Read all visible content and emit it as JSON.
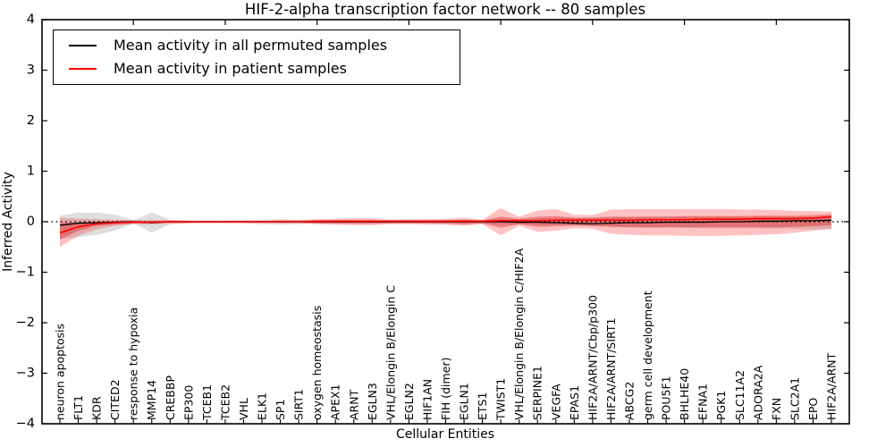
{
  "figure": {
    "title": "HIF-2-alpha transcription factor network -- 80 samples",
    "xlabel": "Cellular Entities",
    "ylabel": "Inferred Activity"
  },
  "legend": {
    "items": [
      {
        "label": "Mean activity in all permuted samples",
        "color": "#000000"
      },
      {
        "label": "Mean activity in patient samples",
        "color": "#ff0000"
      }
    ]
  },
  "chart_data": {
    "type": "line",
    "title": "HIF-2-alpha transcription factor network -- 80 samples",
    "xlabel": "Cellular Entities",
    "ylabel": "Inferred Activity",
    "ylim": [
      -4,
      4
    ],
    "grid": false,
    "legend_position": "upper left",
    "ytick_values": [
      4,
      3,
      2,
      1,
      0,
      -1,
      -2,
      -3,
      -4
    ],
    "ytick_labels": [
      "4",
      "3",
      "2",
      "1",
      "0",
      "−1",
      "−2",
      "−3",
      "−4"
    ],
    "top_tick_indices": [
      4,
      9,
      14,
      19,
      24,
      29,
      34,
      39
    ],
    "categories": [
      "neuron apoptosis",
      "FLT1",
      "KDR",
      "CITED2",
      "response to hypoxia",
      "MMP14",
      "CREBBP",
      "EP300",
      "TCEB1",
      "TCEB2",
      "VHL",
      "ELK1",
      "SP1",
      "SIRT1",
      "oxygen homeostasis",
      "APEX1",
      "ARNT",
      "EGLN3",
      "VHL/Elongin B/Elongin C",
      "EGLN2",
      "HIF1AN",
      "FIH (dimer)",
      "EGLN1",
      "ETS1",
      "TWIST1",
      "VHL/Elongin B/Elongin C/HIF2A",
      "SERPINE1",
      "VEGFA",
      "EPAS1",
      "HIF2A/ARNT/Cbp/p300",
      "HIF2A/ARNT/SIRT1",
      "ABCG2",
      "germ cell development",
      "POU5F1",
      "BHLHE40",
      "EFNA1",
      "PGK1",
      "SLC11A2",
      "ADORA2A",
      "FXN",
      "SLC2A1",
      "EPO",
      "HIF2A/ARNT"
    ],
    "zero_line": {
      "y": 0,
      "style": "dotted",
      "color": "#000000"
    },
    "series": [
      {
        "name": "Mean activity in all permuted samples",
        "color": "#000000",
        "values": [
          -0.07,
          -0.03,
          -0.02,
          -0.01,
          0,
          -0.02,
          0,
          0,
          0,
          0,
          0,
          0,
          0,
          0,
          0,
          0,
          0,
          0,
          0,
          0,
          0,
          0,
          0,
          0,
          0,
          -0.01,
          -0.01,
          -0.02,
          -0.03,
          -0.04,
          -0.03,
          -0.02,
          -0.02,
          -0.01,
          -0.01,
          -0.01,
          0,
          0,
          0.01,
          0.01,
          0.02,
          0.02,
          0.03
        ]
      },
      {
        "name": "Mean activity in patient samples",
        "color": "#ff0000",
        "values": [
          -0.22,
          -0.1,
          -0.04,
          -0.02,
          -0.01,
          -0.01,
          0,
          0,
          0,
          0,
          0,
          0,
          0,
          0,
          0.01,
          0.01,
          0.01,
          0.01,
          0.01,
          0.01,
          0.01,
          0.01,
          0.01,
          0.01,
          0.02,
          0.02,
          0.02,
          0.03,
          0.03,
          0.03,
          0.03,
          0.03,
          0.04,
          0.04,
          0.04,
          0.05,
          0.05,
          0.05,
          0.06,
          0.06,
          0.06,
          0.07,
          0.1
        ]
      }
    ],
    "bands": [
      {
        "name": "permuted samples spread",
        "color": "rgba(0,0,0,0.13)",
        "lo": [
          -0.35,
          -0.3,
          -0.26,
          -0.18,
          -0.03,
          -0.22,
          -0.05,
          -0.03,
          -0.02,
          -0.02,
          -0.03,
          -0.05,
          -0.06,
          -0.05,
          -0.03,
          -0.03,
          -0.03,
          -0.03,
          -0.03,
          -0.03,
          -0.03,
          -0.03,
          -0.04,
          -0.04,
          -0.06,
          -0.05,
          -0.06,
          -0.07,
          -0.08,
          -0.09,
          -0.1,
          -0.11,
          -0.12,
          -0.12,
          -0.12,
          -0.13,
          -0.13,
          -0.13,
          -0.13,
          -0.14,
          -0.14,
          -0.15,
          -0.15
        ],
        "hi": [
          0.12,
          0.18,
          0.18,
          0.14,
          0.03,
          0.18,
          0.04,
          0.02,
          0.02,
          0.02,
          0.03,
          0.04,
          0.05,
          0.04,
          0.03,
          0.03,
          0.03,
          0.03,
          0.03,
          0.03,
          0.03,
          0.03,
          0.04,
          0.04,
          0.05,
          0.05,
          0.06,
          0.07,
          0.08,
          0.08,
          0.09,
          0.09,
          0.1,
          0.1,
          0.1,
          0.1,
          0.1,
          0.1,
          0.1,
          0.1,
          0.1,
          0.1,
          0.1
        ]
      },
      {
        "name": "patient samples spread outer",
        "color": "rgba(255,0,0,0.24)",
        "lo": [
          -0.5,
          -0.28,
          -0.15,
          -0.08,
          -0.05,
          -0.05,
          -0.04,
          -0.03,
          -0.03,
          -0.03,
          -0.03,
          -0.03,
          -0.03,
          -0.03,
          -0.05,
          -0.06,
          -0.07,
          -0.07,
          -0.05,
          -0.05,
          -0.06,
          -0.06,
          -0.08,
          -0.05,
          -0.27,
          -0.08,
          -0.2,
          -0.18,
          -0.13,
          -0.14,
          -0.24,
          -0.26,
          -0.27,
          -0.27,
          -0.28,
          -0.28,
          -0.28,
          -0.27,
          -0.26,
          -0.25,
          -0.22,
          -0.18,
          -0.14
        ],
        "hi": [
          0.08,
          0.06,
          0.05,
          0.04,
          0.03,
          0.03,
          0.03,
          0.02,
          0.02,
          0.02,
          0.02,
          0.02,
          0.03,
          0.03,
          0.05,
          0.06,
          0.07,
          0.07,
          0.04,
          0.05,
          0.05,
          0.06,
          0.08,
          0.04,
          0.27,
          0.1,
          0.22,
          0.25,
          0.14,
          0.13,
          0.24,
          0.25,
          0.25,
          0.25,
          0.25,
          0.25,
          0.25,
          0.24,
          0.24,
          0.23,
          0.22,
          0.21,
          0.2
        ]
      },
      {
        "name": "patient samples spread inner",
        "color": "rgba(215,0,0,0.33)",
        "lo": [
          -0.35,
          -0.18,
          -0.08,
          -0.05,
          -0.03,
          -0.03,
          -0.02,
          -0.02,
          -0.015,
          -0.015,
          -0.015,
          -0.015,
          -0.02,
          -0.02,
          -0.03,
          -0.04,
          -0.04,
          -0.04,
          -0.03,
          -0.03,
          -0.03,
          -0.04,
          -0.05,
          -0.03,
          -0.12,
          -0.05,
          -0.1,
          -0.09,
          -0.07,
          -0.08,
          -0.1,
          -0.11,
          -0.11,
          -0.11,
          -0.11,
          -0.11,
          -0.11,
          -0.11,
          -0.11,
          -0.11,
          -0.1,
          -0.09,
          -0.07
        ],
        "hi": [
          -0.02,
          -0.02,
          0,
          0.01,
          0.01,
          0.01,
          0.01,
          0.01,
          0.01,
          0.01,
          0.01,
          0.01,
          0.01,
          0.01,
          0.02,
          0.03,
          0.03,
          0.03,
          0.02,
          0.02,
          0.02,
          0.03,
          0.04,
          0.02,
          0.1,
          0.06,
          0.1,
          0.11,
          0.08,
          0.08,
          0.1,
          0.1,
          0.1,
          0.1,
          0.11,
          0.11,
          0.11,
          0.11,
          0.12,
          0.12,
          0.12,
          0.13,
          0.15
        ]
      }
    ]
  }
}
